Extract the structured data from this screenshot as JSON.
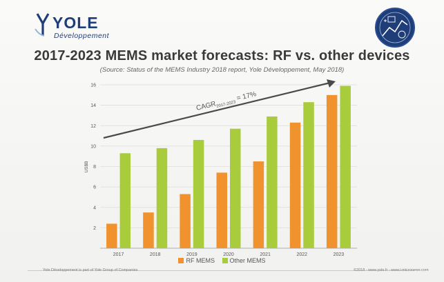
{
  "logo": {
    "name": "YOLE",
    "sub": "Développement"
  },
  "header": {
    "title": "2017-2023 MEMS market forecasts: RF vs. other devices",
    "subtitle": "(Source: Status of the MEMS Industry 2018 report, Yole Développement, May 2018)"
  },
  "footer": {
    "left": "Yole Développement is part of Yole Group of Companies",
    "right": "©2018 - www.yole.fr - www.i-micronews.com"
  },
  "colors": {
    "rf": "#f0922e",
    "other": "#a8cc3c",
    "arrow": "#4a4a4a"
  },
  "chart_data": {
    "type": "bar",
    "categories": [
      "2017",
      "2018",
      "2019",
      "2020",
      "2021",
      "2022",
      "2023"
    ],
    "series": [
      {
        "name": "RF MEMS",
        "values": [
          2.4,
          3.5,
          5.3,
          7.4,
          8.5,
          12.3,
          15.0
        ]
      },
      {
        "name": "Other MEMS",
        "values": [
          9.3,
          9.8,
          10.6,
          11.7,
          12.9,
          14.3,
          15.9
        ]
      }
    ],
    "title": "2017-2023 MEMS market forecasts: RF vs. other devices",
    "xlabel": "",
    "ylabel": "US$B",
    "ylim": [
      0,
      16
    ],
    "yticks": [
      2,
      4,
      6,
      8,
      10,
      12,
      14,
      16
    ],
    "grid": true,
    "legend": "bottom-center",
    "annotation": {
      "text_main": "CAGR",
      "text_sub": "2017-2023",
      "text_value": " = 17%"
    }
  }
}
